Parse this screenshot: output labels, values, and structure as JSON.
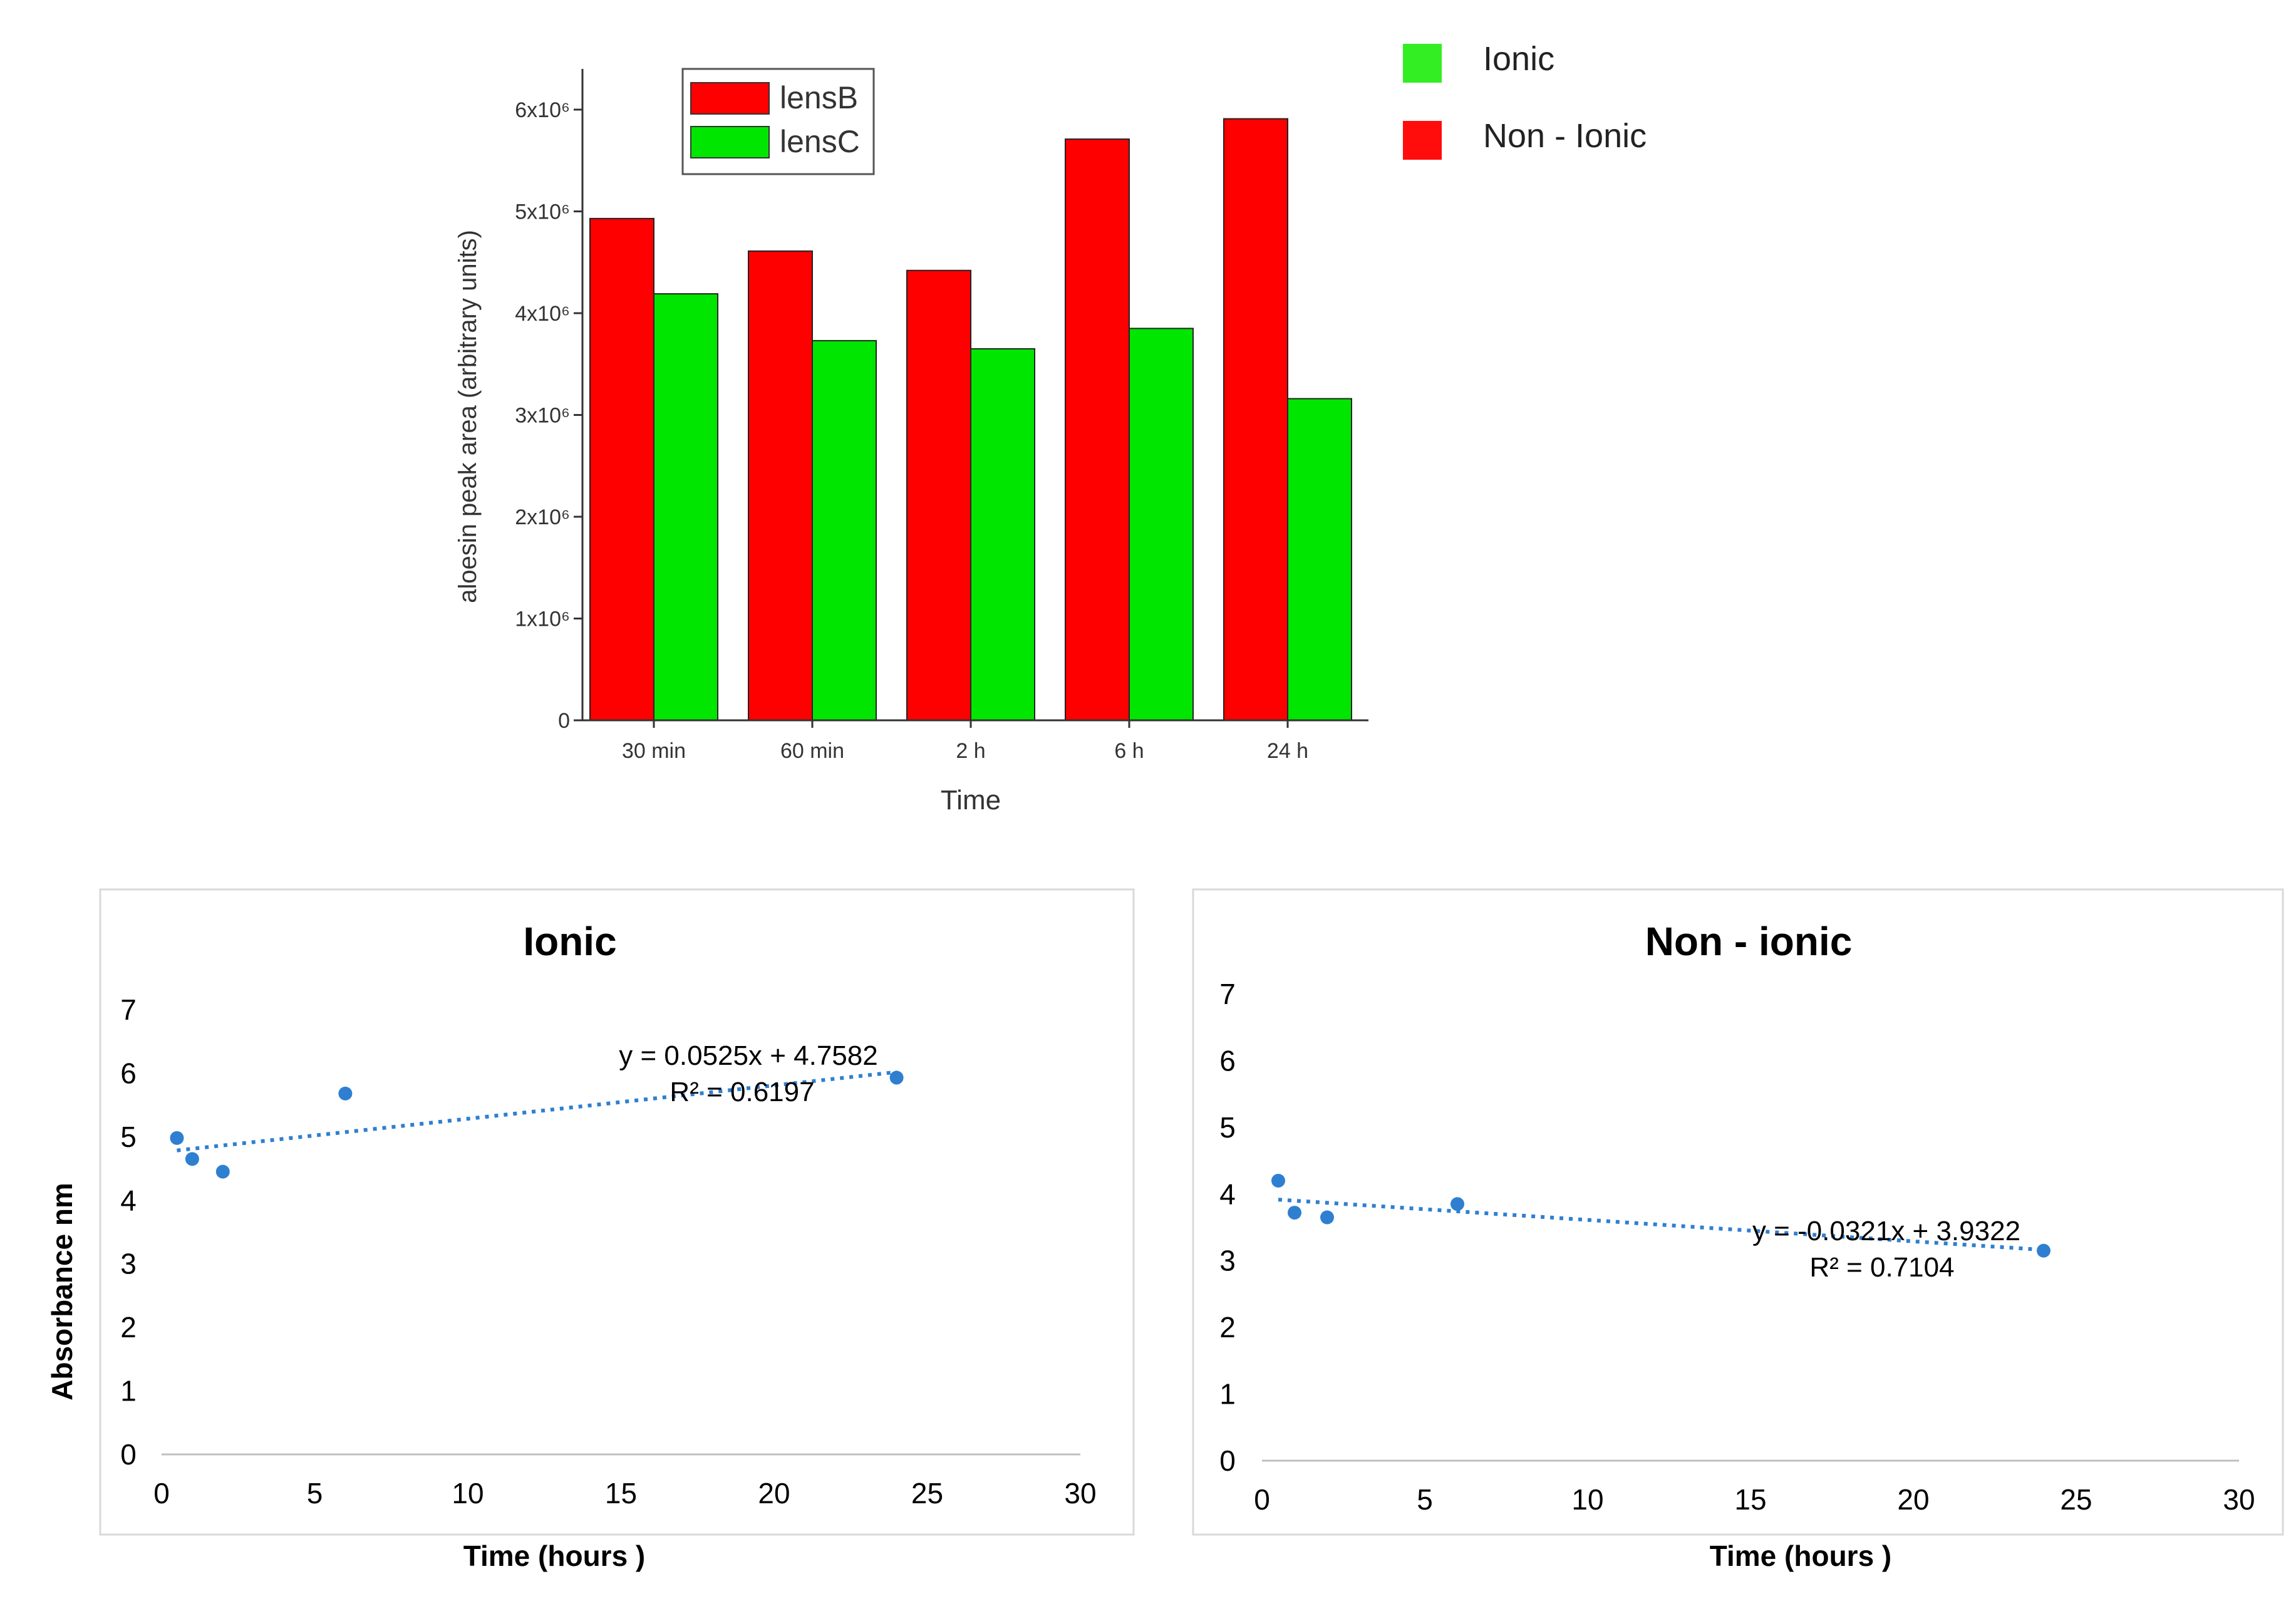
{
  "chart_data": [
    {
      "type": "bar",
      "title": "",
      "xlabel": "Time",
      "ylabel": "aloesin peak area (arbitrary units)",
      "categories": [
        "30 min",
        "60 min",
        "2 h",
        "6 h",
        "24 h"
      ],
      "series": [
        {
          "name": "lensB",
          "color": "#ff0000",
          "values": [
            4930000,
            4610000,
            4420000,
            5710000,
            5910000
          ]
        },
        {
          "name": "lensC",
          "color": "#00e600",
          "values": [
            4190000,
            3730000,
            3650000,
            3850000,
            3160000
          ]
        }
      ],
      "ylim": [
        0,
        6400000
      ],
      "yticks": [
        {
          "value": 0,
          "label": "0"
        },
        {
          "value": 1000000,
          "label": "1x10⁶"
        },
        {
          "value": 2000000,
          "label": "2x10⁶"
        },
        {
          "value": 3000000,
          "label": "3x10⁶"
        },
        {
          "value": 4000000,
          "label": "4x10⁶"
        },
        {
          "value": 5000000,
          "label": "5x10⁶"
        },
        {
          "value": 6000000,
          "label": "6x10⁶"
        }
      ],
      "legend_placement": "top-left",
      "grid": false
    },
    {
      "type": "scatter",
      "title": "Ionic",
      "xlabel": "Time (hours )",
      "ylabel": "Absorbance  nm",
      "xlim": [
        0,
        30
      ],
      "ylim": [
        0,
        7
      ],
      "xticks": [
        0,
        5,
        10,
        15,
        20,
        25,
        30
      ],
      "yticks": [
        0,
        1,
        2,
        3,
        4,
        5,
        6,
        7
      ],
      "points": [
        {
          "x": 0.5,
          "y": 4.98
        },
        {
          "x": 1,
          "y": 4.65
        },
        {
          "x": 2,
          "y": 4.45
        },
        {
          "x": 6,
          "y": 5.68
        },
        {
          "x": 24,
          "y": 5.93
        }
      ],
      "trendline": {
        "slope": 0.0525,
        "intercept": 4.7582,
        "x_range": [
          0.5,
          24
        ]
      },
      "equation": "y = 0.0525x + 4.7582",
      "r_squared": "R² = 0.6197",
      "color": "#2f7fd1",
      "grid": false
    },
    {
      "type": "scatter",
      "title": "Non - ionic",
      "xlabel": "Time (hours )",
      "ylabel": "",
      "xlim": [
        0,
        30
      ],
      "ylim": [
        0,
        7
      ],
      "xticks": [
        0,
        5,
        10,
        15,
        20,
        25,
        30
      ],
      "yticks": [
        0,
        1,
        2,
        3,
        4,
        5,
        6,
        7
      ],
      "points": [
        {
          "x": 0.5,
          "y": 4.2
        },
        {
          "x": 1,
          "y": 3.72
        },
        {
          "x": 2,
          "y": 3.65
        },
        {
          "x": 6,
          "y": 3.85
        },
        {
          "x": 24,
          "y": 3.15
        }
      ],
      "trendline": {
        "slope": -0.0321,
        "intercept": 3.9322,
        "x_range": [
          0.5,
          24
        ]
      },
      "equation": "y = -0.0321x + 3.9322",
      "r_squared": "R² = 0.7104",
      "color": "#2f7fd1",
      "grid": false
    }
  ],
  "key_legend": [
    {
      "label": "Ionic",
      "color": "#33ee22"
    },
    {
      "label": "Non - Ionic",
      "color": "#ff0d0d"
    }
  ]
}
